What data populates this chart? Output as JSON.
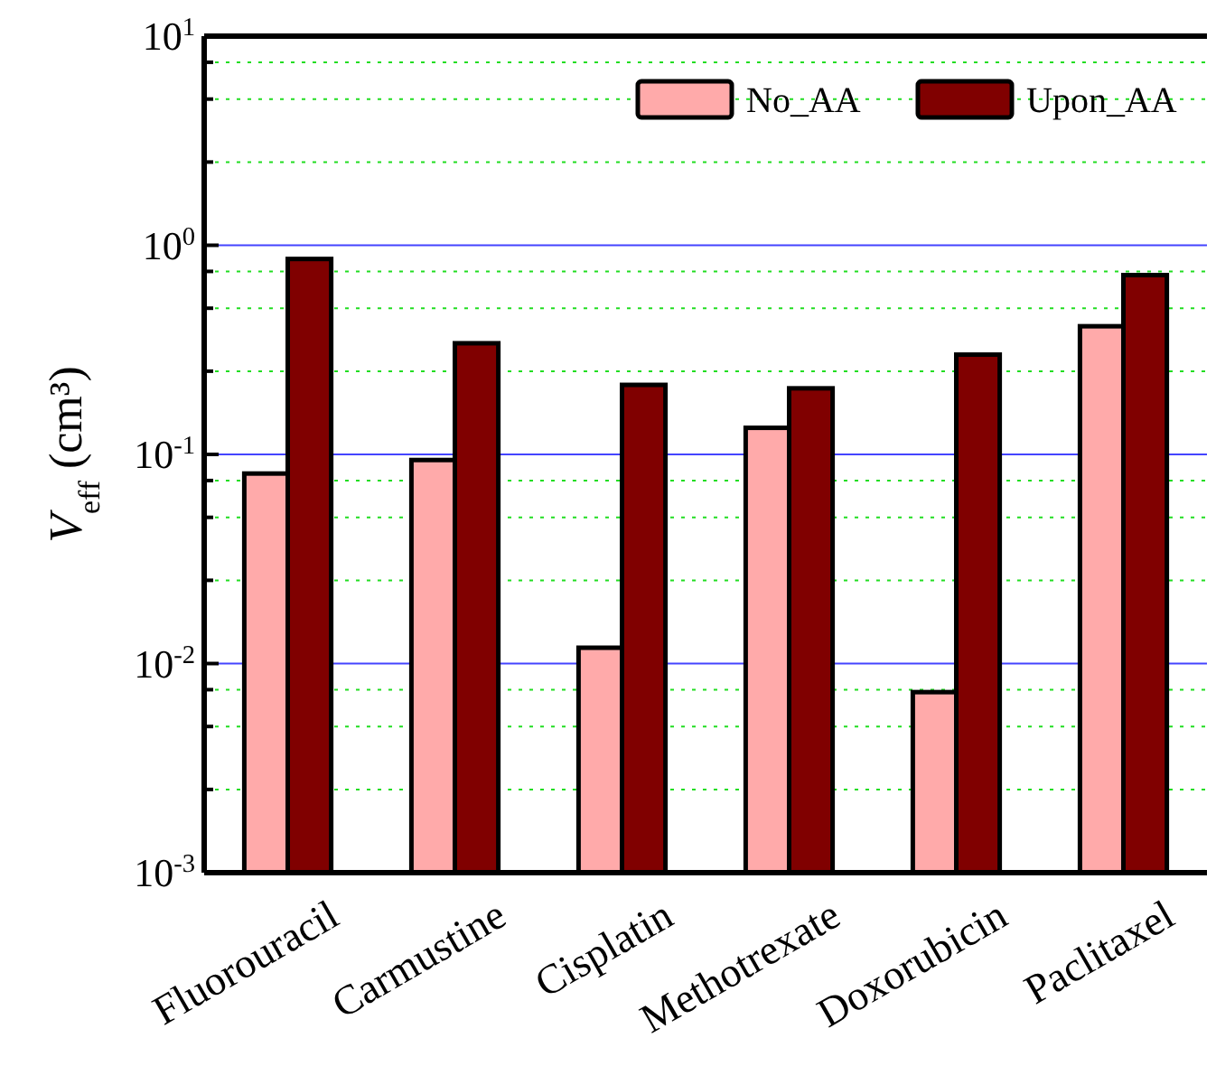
{
  "chart_data": {
    "type": "bar",
    "ylabel": "V$_{eff}$ (cm³)",
    "categories": [
      "Fluorouracil",
      "Carmustine",
      "Cisplatin",
      "Methotrexate",
      "Doxorubicin",
      "Paclitaxel"
    ],
    "series": [
      {
        "name": "No_AA",
        "color": "#ffaaaa",
        "values": [
          0.081,
          0.094,
          0.0119,
          0.134,
          0.0073,
          0.41
        ]
      },
      {
        "name": "Upon_AA",
        "color": "#800000",
        "values": [
          0.86,
          0.34,
          0.215,
          0.207,
          0.3,
          0.72
        ]
      }
    ],
    "log": "y",
    "ylim": [
      0.001,
      10
    ],
    "yticks": [
      {
        "value": 0.001,
        "label": "10$^{-3}$"
      },
      {
        "value": 0.0025,
        "label": null
      },
      {
        "value": 0.005,
        "label": null
      },
      {
        "value": 0.0075,
        "label": null
      },
      {
        "value": 0.01,
        "label": "10$^{-2}$"
      },
      {
        "value": 0.025,
        "label": null
      },
      {
        "value": 0.05,
        "label": null
      },
      {
        "value": 0.075,
        "label": null
      },
      {
        "value": 0.1,
        "label": "10$^{-1}$"
      },
      {
        "value": 0.25,
        "label": null
      },
      {
        "value": 0.5,
        "label": null
      },
      {
        "value": 0.75,
        "label": null
      },
      {
        "value": 1,
        "label": "10$^{0}$"
      },
      {
        "value": 2.5,
        "label": null
      },
      {
        "value": 5,
        "label": null
      },
      {
        "value": 7.5,
        "label": null
      },
      {
        "value": 10,
        "label": "10$^{1}$"
      }
    ],
    "grid": true,
    "legend": "top right"
  }
}
